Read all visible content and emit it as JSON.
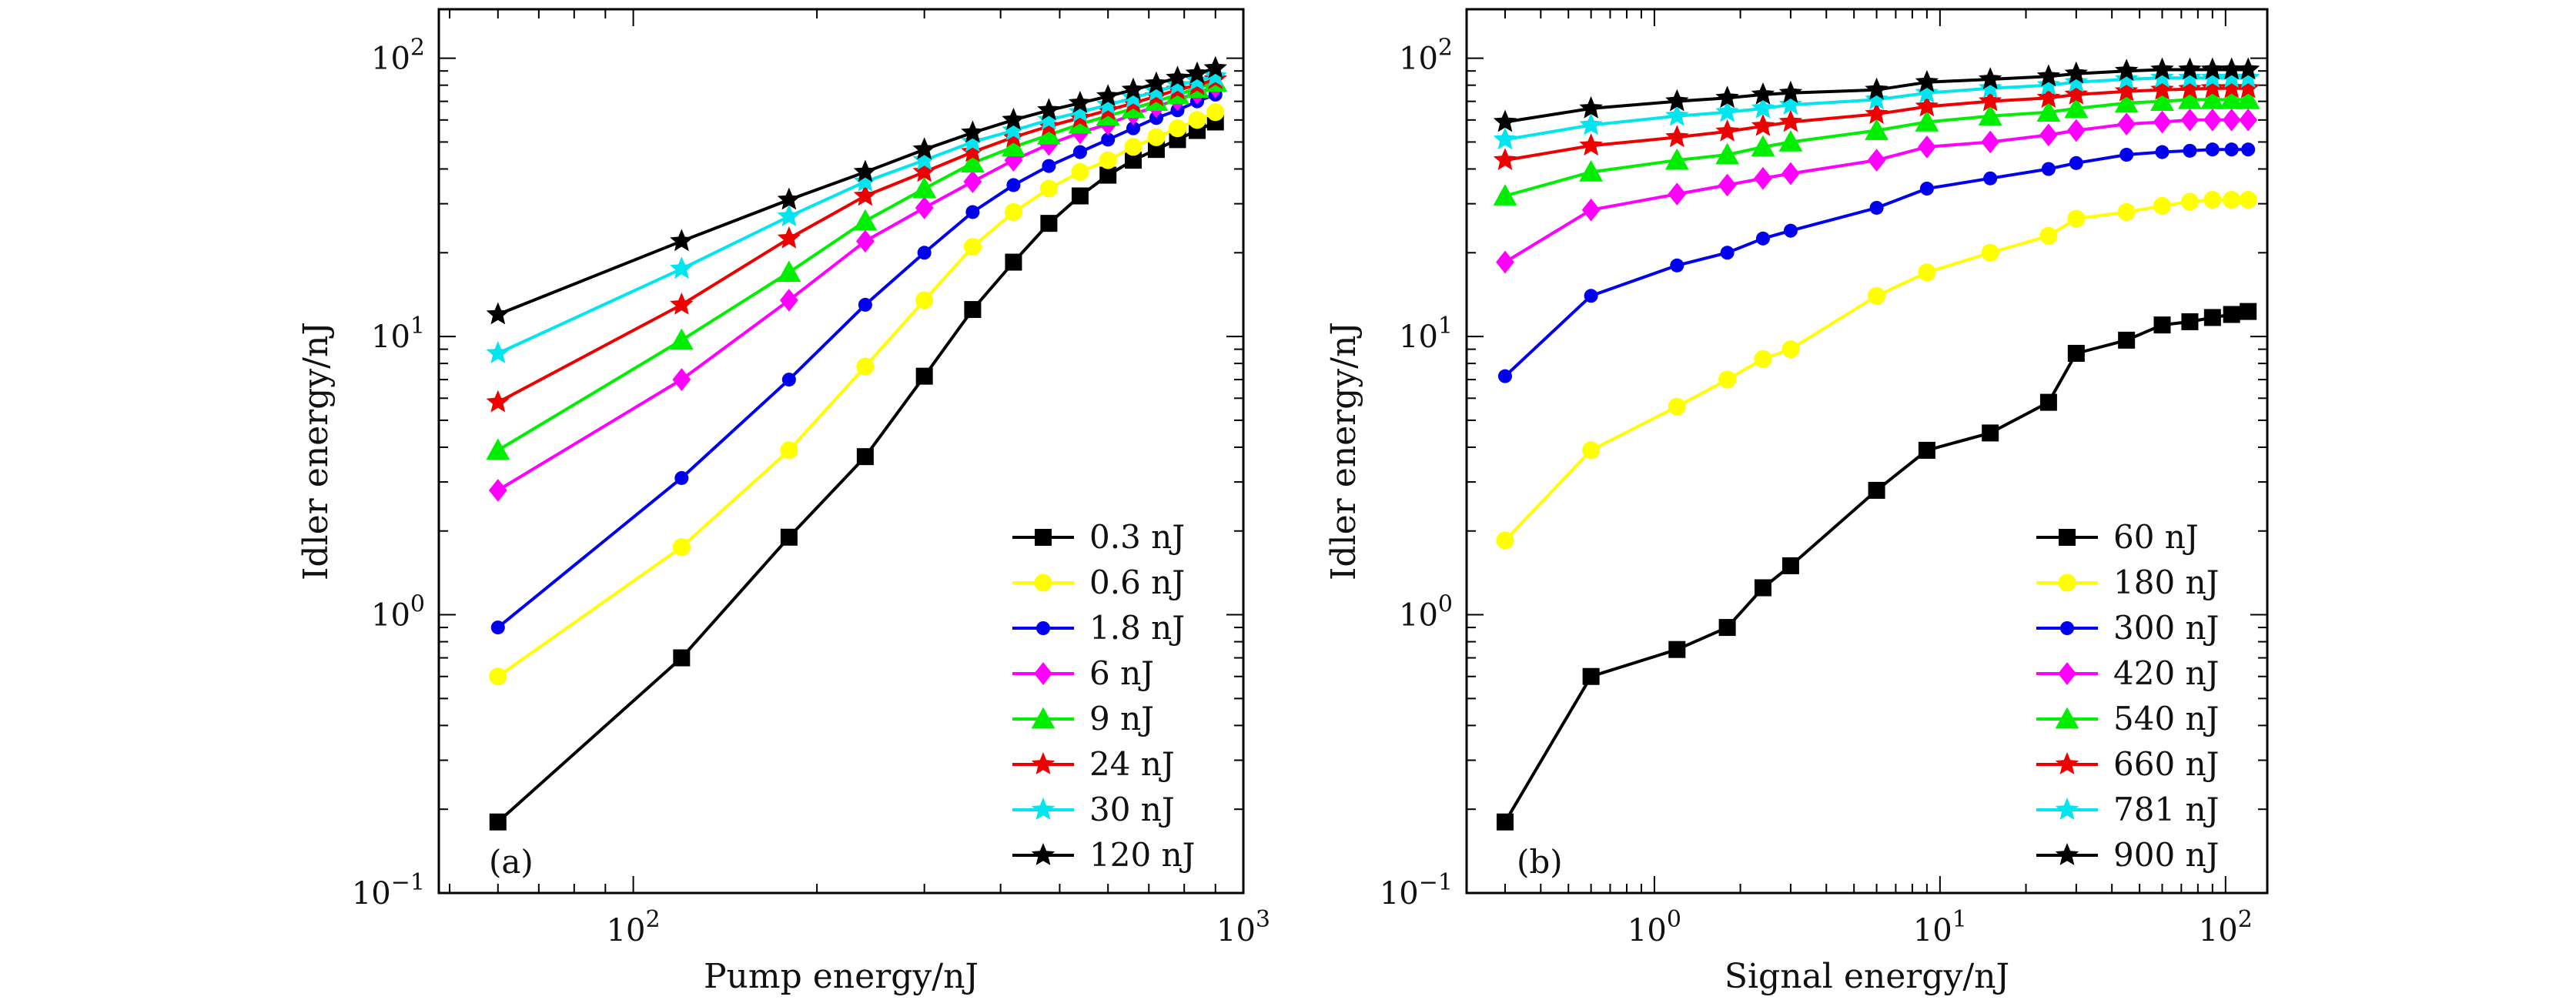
{
  "chart_data": [
    {
      "type": "line",
      "panel_label": "(a)",
      "xlabel": "Pump energy/nJ",
      "ylabel": "Idler energy/nJ",
      "xscale": "log",
      "yscale": "log",
      "xlim": [
        48,
        1000
      ],
      "ylim": [
        0.1,
        150
      ],
      "x_ticks": [
        {
          "value": 100,
          "base": "10",
          "exp": "2"
        },
        {
          "value": 1000,
          "base": "10",
          "exp": "3"
        }
      ],
      "y_ticks": [
        {
          "value": 0.1,
          "base": "10",
          "exp": "−1"
        },
        {
          "value": 1,
          "base": "10",
          "exp": "0"
        },
        {
          "value": 10,
          "base": "10",
          "exp": "1"
        },
        {
          "value": 100,
          "base": "10",
          "exp": "2"
        }
      ],
      "legend_position": "bottom-right",
      "series": [
        {
          "name": "0.3 nJ",
          "color": "#000000",
          "marker": "square",
          "x": [
            60,
            120,
            180,
            240,
            300,
            360,
            420,
            480,
            540,
            600,
            660,
            720,
            780,
            840,
            900
          ],
          "y": [
            0.18,
            0.7,
            1.9,
            3.7,
            7.2,
            12.5,
            18.5,
            25.5,
            32,
            38,
            43,
            47,
            51,
            55,
            59
          ]
        },
        {
          "name": "0.6 nJ",
          "color": "#ffff00",
          "marker": "circle",
          "x": [
            60,
            120,
            180,
            240,
            300,
            360,
            420,
            480,
            540,
            600,
            660,
            720,
            780,
            840,
            900
          ],
          "y": [
            0.6,
            1.75,
            3.9,
            7.8,
            13.5,
            21,
            28,
            34,
            39,
            43,
            48,
            52,
            56,
            60,
            64
          ]
        },
        {
          "name": "1.8 nJ",
          "color": "#0000ee",
          "marker": "dot",
          "x": [
            60,
            120,
            180,
            240,
            300,
            360,
            420,
            480,
            540,
            600,
            660,
            720,
            780,
            840,
            900
          ],
          "y": [
            0.9,
            3.1,
            7,
            13,
            20,
            28,
            35,
            41,
            46,
            51,
            56,
            61,
            65,
            70,
            74
          ]
        },
        {
          "name": "6 nJ",
          "color": "#ff00ff",
          "marker": "diamond",
          "x": [
            60,
            120,
            180,
            240,
            300,
            360,
            420,
            480,
            540,
            600,
            660,
            720,
            780,
            840,
            900
          ],
          "y": [
            2.8,
            7,
            13.5,
            22,
            29,
            36,
            43,
            49,
            54,
            58,
            63,
            67,
            71,
            75,
            79
          ]
        },
        {
          "name": "9 nJ",
          "color": "#00ee00",
          "marker": "triangle",
          "x": [
            60,
            120,
            180,
            240,
            300,
            360,
            420,
            480,
            540,
            600,
            660,
            720,
            780,
            840,
            900
          ],
          "y": [
            3.9,
            9.7,
            17,
            26,
            34,
            42,
            48,
            53,
            58,
            62,
            66,
            70,
            74,
            78,
            82
          ]
        },
        {
          "name": "24 nJ",
          "color": "#ee0000",
          "marker": "star",
          "x": [
            60,
            120,
            180,
            240,
            300,
            360,
            420,
            480,
            540,
            600,
            660,
            720,
            780,
            840,
            900
          ],
          "y": [
            5.8,
            13,
            22.5,
            32,
            39,
            46,
            52,
            57,
            61,
            65,
            69,
            73,
            77,
            80,
            84
          ]
        },
        {
          "name": "30 nJ",
          "color": "#00e5ee",
          "marker": "star",
          "x": [
            60,
            120,
            180,
            240,
            300,
            360,
            420,
            480,
            540,
            600,
            660,
            720,
            780,
            840,
            900
          ],
          "y": [
            8.7,
            17.5,
            27,
            36,
            43,
            50,
            55,
            60,
            64,
            68,
            72,
            76,
            80,
            83,
            86
          ]
        },
        {
          "name": "120 nJ",
          "color": "#000000",
          "marker": "star",
          "x": [
            60,
            120,
            180,
            240,
            300,
            360,
            420,
            480,
            540,
            600,
            660,
            720,
            780,
            840,
            900
          ],
          "y": [
            12,
            22,
            31,
            39,
            47,
            54,
            60,
            65,
            69,
            73,
            77,
            81,
            85,
            88,
            92
          ]
        }
      ]
    },
    {
      "type": "line",
      "panel_label": "(b)",
      "xlabel": "Signal energy/nJ",
      "ylabel": "Idler energy/nJ",
      "xscale": "log",
      "yscale": "log",
      "xlim": [
        0.22,
        140
      ],
      "ylim": [
        0.1,
        150
      ],
      "x_ticks": [
        {
          "value": 1,
          "base": "10",
          "exp": "0"
        },
        {
          "value": 10,
          "base": "10",
          "exp": "1"
        },
        {
          "value": 100,
          "base": "10",
          "exp": "2"
        }
      ],
      "y_ticks": [
        {
          "value": 0.1,
          "base": "10",
          "exp": "−1"
        },
        {
          "value": 1,
          "base": "10",
          "exp": "0"
        },
        {
          "value": 10,
          "base": "10",
          "exp": "1"
        },
        {
          "value": 100,
          "base": "10",
          "exp": "2"
        }
      ],
      "legend_position": "bottom-right",
      "series": [
        {
          "name": "60 nJ",
          "color": "#000000",
          "marker": "square",
          "x": [
            0.3,
            0.6,
            1.2,
            1.8,
            2.4,
            3,
            6,
            9,
            15,
            24,
            30,
            45,
            60,
            75,
            90,
            105,
            120
          ],
          "y": [
            0.18,
            0.6,
            0.75,
            0.9,
            1.25,
            1.5,
            2.8,
            3.9,
            4.5,
            5.8,
            8.7,
            9.7,
            11,
            11.3,
            11.7,
            12,
            12.3
          ]
        },
        {
          "name": "180 nJ",
          "color": "#ffff00",
          "marker": "circle",
          "x": [
            0.3,
            0.6,
            1.2,
            1.8,
            2.4,
            3,
            6,
            9,
            15,
            24,
            30,
            45,
            60,
            75,
            90,
            105,
            120
          ],
          "y": [
            1.85,
            3.9,
            5.6,
            7,
            8.3,
            9,
            14,
            17,
            20,
            23,
            26.5,
            28,
            29.5,
            30.5,
            31,
            31,
            31
          ]
        },
        {
          "name": "300 nJ",
          "color": "#0000ee",
          "marker": "dot",
          "x": [
            0.3,
            0.6,
            1.2,
            1.8,
            2.4,
            3,
            6,
            9,
            15,
            24,
            30,
            45,
            60,
            75,
            90,
            105,
            120
          ],
          "y": [
            7.2,
            14,
            18,
            20,
            22.5,
            24,
            29,
            34,
            37,
            40,
            42,
            45,
            46,
            46.5,
            47,
            47,
            47
          ]
        },
        {
          "name": "420 nJ",
          "color": "#ff00ff",
          "marker": "diamond",
          "x": [
            0.3,
            0.6,
            1.2,
            1.8,
            2.4,
            3,
            6,
            9,
            15,
            24,
            30,
            45,
            60,
            75,
            90,
            105,
            120
          ],
          "y": [
            18.5,
            28.5,
            32.5,
            35,
            37,
            38.5,
            43,
            48,
            50,
            53,
            55,
            58,
            59,
            60,
            60,
            60,
            60
          ]
        },
        {
          "name": "540 nJ",
          "color": "#00ee00",
          "marker": "triangle",
          "x": [
            0.3,
            0.6,
            1.2,
            1.8,
            2.4,
            3,
            6,
            9,
            15,
            24,
            30,
            45,
            60,
            75,
            90,
            105,
            120
          ],
          "y": [
            32,
            39,
            43,
            45,
            48,
            50,
            55,
            59,
            62,
            64,
            66,
            69,
            70,
            71,
            71,
            71,
            71
          ]
        },
        {
          "name": "660 nJ",
          "color": "#ee0000",
          "marker": "star",
          "x": [
            0.3,
            0.6,
            1.2,
            1.8,
            2.4,
            3,
            6,
            9,
            15,
            24,
            30,
            45,
            60,
            75,
            90,
            105,
            120
          ],
          "y": [
            43,
            48.5,
            52,
            54.5,
            57,
            59,
            63,
            67,
            70,
            72,
            74,
            76,
            77,
            77.5,
            78,
            78,
            78
          ]
        },
        {
          "name": "781 nJ",
          "color": "#00e5ee",
          "marker": "star",
          "x": [
            0.3,
            0.6,
            1.2,
            1.8,
            2.4,
            3,
            6,
            9,
            15,
            24,
            30,
            45,
            60,
            75,
            90,
            105,
            120
          ],
          "y": [
            51,
            57.5,
            62,
            64,
            66,
            68,
            71,
            75,
            78,
            80,
            82,
            84,
            85,
            85,
            85,
            85,
            85
          ]
        },
        {
          "name": "900 nJ",
          "color": "#000000",
          "marker": "star",
          "x": [
            0.3,
            0.6,
            1.2,
            1.8,
            2.4,
            3,
            6,
            9,
            15,
            24,
            30,
            45,
            60,
            75,
            90,
            105,
            120
          ],
          "y": [
            59,
            66,
            70,
            72,
            74,
            75,
            77,
            82,
            84,
            86,
            88,
            90,
            91,
            91,
            91,
            91,
            91
          ]
        }
      ]
    }
  ]
}
